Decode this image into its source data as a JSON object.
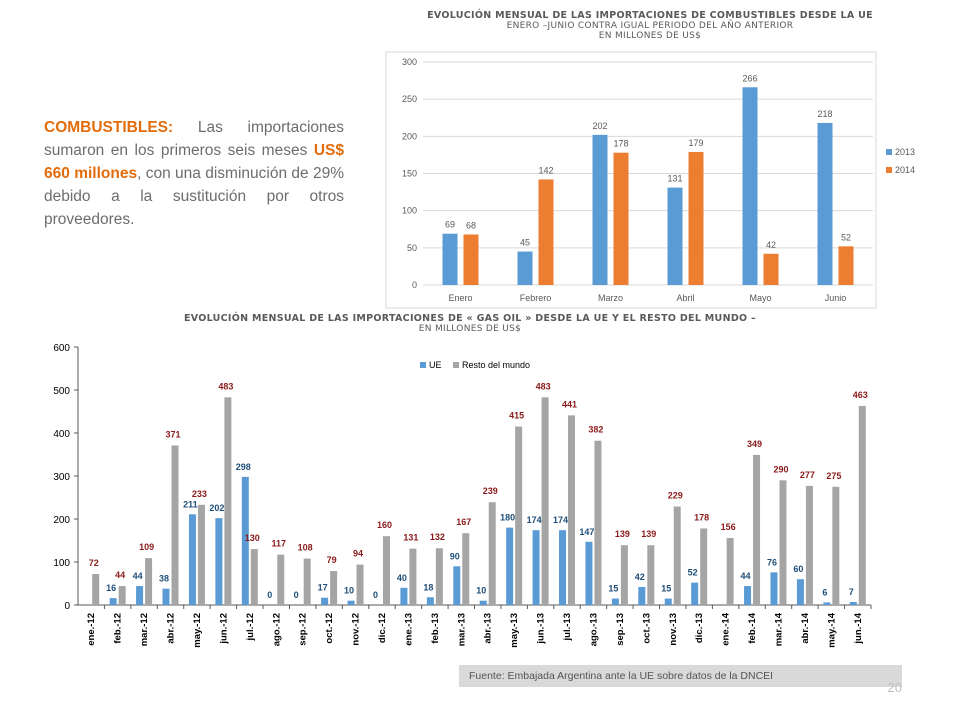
{
  "text": {
    "label": "COMBUSTIBLES:",
    "part1": " Las importaciones sumaron en los primeros seis meses ",
    "highlight": "US$ 660 millones",
    "part2": ", con una disminución de 29% debido a la sustitución por otros proveedores."
  },
  "source": "Fuente: Embajada  Argentina ante la UE sobre datos de la DNCEI",
  "page_number": "20",
  "colors": {
    "blue": "#5b9bd5",
    "orange": "#ed7d31",
    "gray": "#a5a5a5",
    "red_label": "#8b1a1a",
    "blue_label": "#1f4e79",
    "highlight": "#e36c0a"
  },
  "chart_data": [
    {
      "type": "bar",
      "title": "EVOLUCIÓN MENSUAL DE LAS IMPORTACIONES DE COMBUSTIBLES DESDE LA UE",
      "subtitle_1": "ENERO –JUNIO CONTRA IGUAL PERIODO DEL AÑO ANTERIOR",
      "subtitle_2": "EN MILLONES DE US$",
      "categories": [
        "Enero",
        "Febrero",
        "Marzo",
        "Abril",
        "Mayo",
        "Junio"
      ],
      "series": [
        {
          "name": "2013",
          "values": [
            69,
            45,
            202,
            131,
            266,
            218
          ]
        },
        {
          "name": "2014",
          "values": [
            68,
            142,
            178,
            179,
            42,
            52
          ]
        }
      ],
      "ylim": [
        0,
        300
      ],
      "yticks": [
        0,
        50,
        100,
        150,
        200,
        250,
        300
      ],
      "grid": true,
      "legend": "right"
    },
    {
      "type": "bar",
      "title": "EVOLUCIÓN MENSUAL DE LAS IMPORTACIONES DE « GAS OIL » DESDE LA UE Y EL RESTO DEL MUNDO –",
      "subtitle_1": "EN MILLONES DE US$",
      "categories": [
        "ene.-12",
        "feb.-12",
        "mar.-12",
        "abr.-12",
        "may.-12",
        "jun.-12",
        "jul.-12",
        "ago.-12",
        "sep.-12",
        "oct.-12",
        "nov.-12",
        "dic.-12",
        "ene.-13",
        "feb.-13",
        "mar.-13",
        "abr.-13",
        "may.-13",
        "jun.-13",
        "jul.-13",
        "ago.-13",
        "sep.-13",
        "oct.-13",
        "nov.-13",
        "dic.-13",
        "ene.-14",
        "feb.-14",
        "mar.-14",
        "abr.-14",
        "may.-14",
        "jun.-14"
      ],
      "series": [
        {
          "name": "UE",
          "values": [
            null,
            16,
            44,
            38,
            211,
            202,
            298,
            0,
            0,
            17,
            10,
            0,
            40,
            18,
            90,
            10,
            180,
            174,
            174,
            147,
            15,
            42,
            15,
            52,
            null,
            44,
            76,
            60,
            6,
            7
          ]
        },
        {
          "name": "Resto del mundo",
          "values": [
            72,
            44,
            109,
            371,
            233,
            483,
            130,
            117,
            108,
            79,
            94,
            160,
            131,
            132,
            167,
            239,
            415,
            483,
            441,
            382,
            139,
            139,
            229,
            178,
            156,
            349,
            290,
            277,
            275,
            463
          ]
        }
      ],
      "ylim": [
        0,
        600
      ],
      "yticks": [
        0,
        100,
        200,
        300,
        400,
        500,
        600
      ],
      "grid": false,
      "legend": "top"
    }
  ]
}
